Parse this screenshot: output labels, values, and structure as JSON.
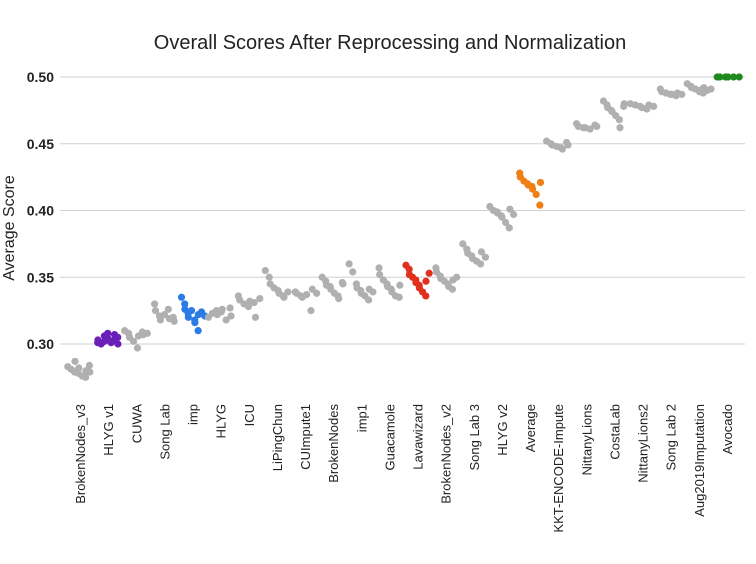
{
  "chart_data": {
    "type": "scatter",
    "title": "Overall Scores After Reprocessing and Normalization",
    "xlabel": "",
    "ylabel": "Average Score",
    "ylim": [
      0.27,
      0.5
    ],
    "grid": true,
    "yticks": [
      "0.30",
      "0.35",
      "0.40",
      "0.45",
      "0.50"
    ],
    "categories": [
      "BrokenNodes_v3",
      "HLYG v1",
      "CUWA",
      "Song Lab",
      "imp",
      "HLYG",
      "ICU",
      "LiPingChun",
      "CUImpute1",
      "BrokenNodes",
      "imp1",
      "Guacamole",
      "Lavawizard",
      "BrokenNodes_v2",
      "Song Lab 3",
      "HLYG v2",
      "Average",
      "KKT-ENCODE-Impute",
      "NittanyLions",
      "CostaLab",
      "NittanyLions2",
      "Song Lab 2",
      "Aug2019Imputation",
      "Avocado"
    ],
    "colors": {
      "default": "#b0b0b0",
      "HLYG v1": "#6a1fb8",
      "imp": "#2a7be4",
      "Lavawizard": "#e0301e",
      "Average": "#f07f16",
      "Avocado": "#1e8a1e"
    },
    "series": [
      {
        "category": "BrokenNodes_v3",
        "values": [
          0.283,
          0.281,
          0.279,
          0.287,
          0.278,
          0.282,
          0.276,
          0.275,
          0.28,
          0.284,
          0.279
        ]
      },
      {
        "category": "HLYG v1",
        "values": [
          0.301,
          0.303,
          0.3,
          0.306,
          0.302,
          0.308,
          0.304,
          0.301,
          0.303,
          0.307,
          0.305,
          0.3
        ]
      },
      {
        "category": "CUWA",
        "values": [
          0.31,
          0.308,
          0.305,
          0.302,
          0.297,
          0.306,
          0.309,
          0.307,
          0.308
        ]
      },
      {
        "category": "Song Lab",
        "values": [
          0.33,
          0.325,
          0.321,
          0.318,
          0.322,
          0.326,
          0.319,
          0.32,
          0.317
        ]
      },
      {
        "category": "imp",
        "values": [
          0.335,
          0.33,
          0.326,
          0.323,
          0.32,
          0.325,
          0.318,
          0.316,
          0.31,
          0.322,
          0.324,
          0.321
        ]
      },
      {
        "category": "HLYG",
        "values": [
          0.32,
          0.323,
          0.325,
          0.322,
          0.324,
          0.326,
          0.318,
          0.327,
          0.321
        ]
      },
      {
        "category": "ICU",
        "values": [
          0.336,
          0.333,
          0.33,
          0.328,
          0.332,
          0.331,
          0.32,
          0.334
        ]
      },
      {
        "category": "LiPingChun",
        "values": [
          0.355,
          0.35,
          0.345,
          0.342,
          0.34,
          0.338,
          0.336,
          0.335,
          0.339
        ]
      },
      {
        "category": "CUImpute1",
        "values": [
          0.339,
          0.338,
          0.336,
          0.335,
          0.337,
          0.325,
          0.341,
          0.338
        ]
      },
      {
        "category": "BrokenNodes",
        "values": [
          0.35,
          0.347,
          0.344,
          0.343,
          0.341,
          0.338,
          0.336,
          0.334,
          0.346,
          0.345
        ]
      },
      {
        "category": "imp1",
        "values": [
          0.36,
          0.354,
          0.345,
          0.342,
          0.34,
          0.338,
          0.336,
          0.333,
          0.341,
          0.339
        ]
      },
      {
        "category": "Guacamole",
        "values": [
          0.357,
          0.352,
          0.348,
          0.345,
          0.343,
          0.341,
          0.339,
          0.336,
          0.335,
          0.344
        ]
      },
      {
        "category": "Lavawizard",
        "values": [
          0.359,
          0.356,
          0.352,
          0.35,
          0.348,
          0.346,
          0.344,
          0.342,
          0.339,
          0.336,
          0.347,
          0.353
        ]
      },
      {
        "category": "BrokenNodes_v2",
        "values": [
          0.357,
          0.354,
          0.351,
          0.349,
          0.347,
          0.345,
          0.343,
          0.341,
          0.348,
          0.35
        ]
      },
      {
        "category": "Song Lab 3",
        "values": [
          0.375,
          0.371,
          0.368,
          0.366,
          0.364,
          0.362,
          0.36,
          0.369,
          0.365
        ]
      },
      {
        "category": "HLYG v2",
        "values": [
          0.403,
          0.4,
          0.399,
          0.398,
          0.396,
          0.395,
          0.391,
          0.387,
          0.401,
          0.397
        ]
      },
      {
        "category": "Average",
        "values": [
          0.428,
          0.425,
          0.422,
          0.42,
          0.419,
          0.418,
          0.416,
          0.412,
          0.404,
          0.421
        ]
      },
      {
        "category": "KKT-ENCODE-Impute",
        "values": [
          0.452,
          0.45,
          0.449,
          0.448,
          0.447,
          0.446,
          0.451,
          0.449
        ]
      },
      {
        "category": "NittanyLions",
        "values": [
          0.465,
          0.463,
          0.462,
          0.462,
          0.461,
          0.464,
          0.463
        ]
      },
      {
        "category": "CostaLab",
        "values": [
          0.482,
          0.479,
          0.477,
          0.475,
          0.474,
          0.471,
          0.468,
          0.462,
          0.478,
          0.48
        ]
      },
      {
        "category": "NittanyLions2",
        "values": [
          0.48,
          0.479,
          0.478,
          0.477,
          0.476,
          0.479,
          0.478
        ]
      },
      {
        "category": "Song Lab 2",
        "values": [
          0.491,
          0.489,
          0.488,
          0.487,
          0.487,
          0.486,
          0.488,
          0.487
        ]
      },
      {
        "category": "Aug2019Imputation",
        "values": [
          0.495,
          0.493,
          0.492,
          0.491,
          0.49,
          0.489,
          0.488,
          0.492,
          0.49,
          0.491
        ]
      },
      {
        "category": "Avocado",
        "values": [
          0.5,
          0.5,
          0.5,
          0.5,
          0.5,
          0.5
        ]
      }
    ]
  }
}
